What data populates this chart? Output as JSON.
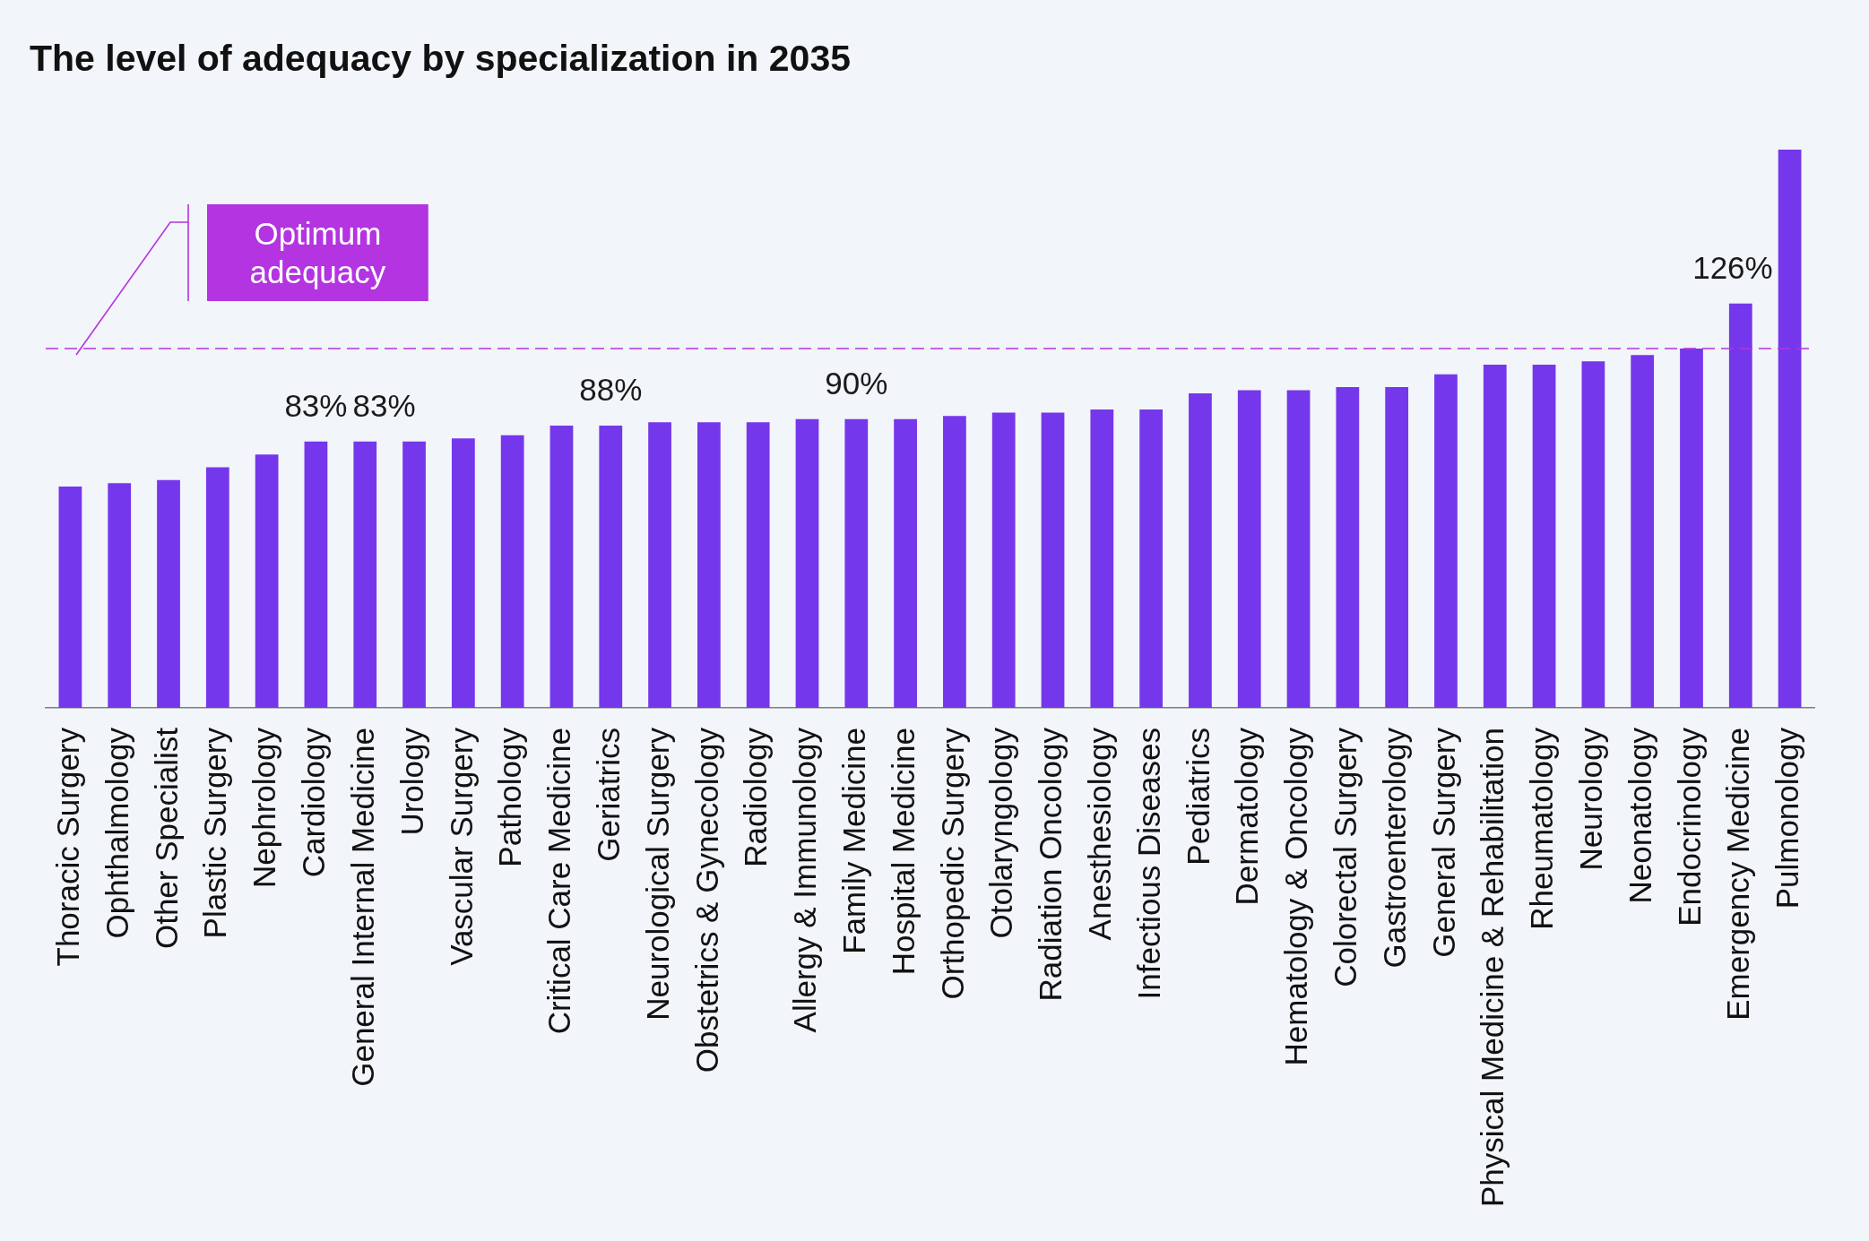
{
  "chart_data": {
    "type": "bar",
    "title": "The level of adequacy by specialization in 2035",
    "categories": [
      "Thoracic Surgery",
      "Ophthalmology",
      "Other Specialist",
      "Plastic Surgery",
      "Nephrology",
      "Cardiology",
      "General Internal Medicine",
      "Urology",
      "Vascular Surgery",
      "Pathology",
      "Critical Care Medicine",
      "Geriatrics",
      "Neurological Surgery",
      "Obstetrics & Gynecology",
      "Radiology",
      "Allergy & Immunology",
      "Family Medicine",
      "Hospital Medicine",
      "Orthopedic Surgery",
      "Otolaryngology",
      "Radiation Oncology",
      "Anesthesiology",
      "Infectious Diseases",
      "Pediatrics",
      "Dermatology",
      "Hematology & Oncology",
      "Colorectal Surgery",
      "Gastroenterology",
      "General Surgery",
      "Physical Medicine & Rehabilitation",
      "Rheumatology",
      "Neurology",
      "Neonatology",
      "Endocrinology",
      "Emergency Medicine",
      "Pulmonology"
    ],
    "values": [
      69,
      70,
      71,
      75,
      79,
      83,
      83,
      83,
      84,
      85,
      88,
      88,
      89,
      89,
      89,
      90,
      90,
      90,
      91,
      92,
      92,
      93,
      93,
      98,
      99,
      99,
      100,
      100,
      104,
      107,
      107,
      108,
      110,
      112,
      126,
      174
    ],
    "value_labels": [
      null,
      null,
      null,
      null,
      null,
      "83%",
      "83%",
      null,
      null,
      null,
      null,
      "88%",
      null,
      null,
      null,
      null,
      "90%",
      null,
      null,
      null,
      null,
      null,
      null,
      null,
      null,
      null,
      null,
      null,
      null,
      null,
      null,
      null,
      null,
      null,
      "126%",
      null
    ],
    "color": "#7537ec",
    "tick_labels": "x",
    "ref_lines": [
      {
        "axis": "y",
        "value": 112,
        "label": "Optimum adequacy",
        "color": "#b334e0",
        "line_style": "dashed"
      }
    ]
  }
}
